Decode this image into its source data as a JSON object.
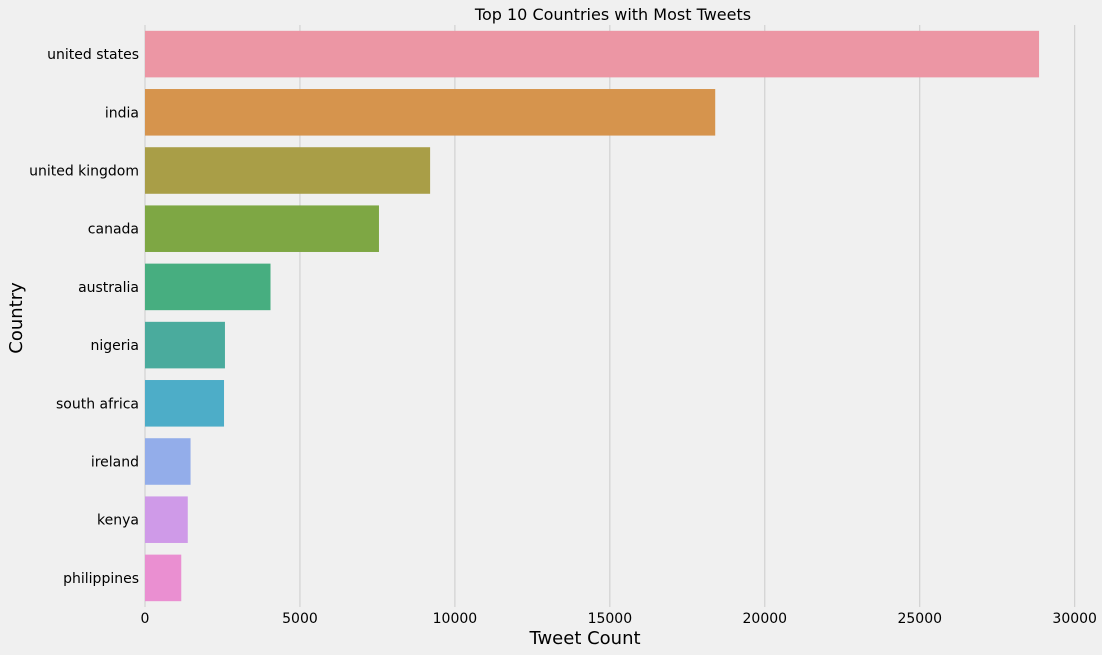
{
  "chart_data": {
    "type": "bar",
    "orientation": "horizontal",
    "title": "Top 10 Countries with Most Tweets",
    "xlabel": "Tweet Count",
    "ylabel": "Country",
    "xlim": [
      0,
      30300
    ],
    "x_ticks": [
      0,
      5000,
      10000,
      15000,
      20000,
      25000,
      30000
    ],
    "grid": "vertical",
    "categories": [
      "united states",
      "india",
      "united kingdom",
      "canada",
      "australia",
      "nigeria",
      "south africa",
      "ireland",
      "kenya",
      "philippines"
    ],
    "values": [
      28850,
      18400,
      9200,
      7550,
      4050,
      2580,
      2550,
      1470,
      1380,
      1170
    ],
    "colors": [
      "#ec96a4",
      "#d6944d",
      "#a99e47",
      "#7ea744",
      "#47ae80",
      "#4aab9d",
      "#4dadc8",
      "#93adea",
      "#cf9ae8",
      "#ea8fd1"
    ]
  }
}
